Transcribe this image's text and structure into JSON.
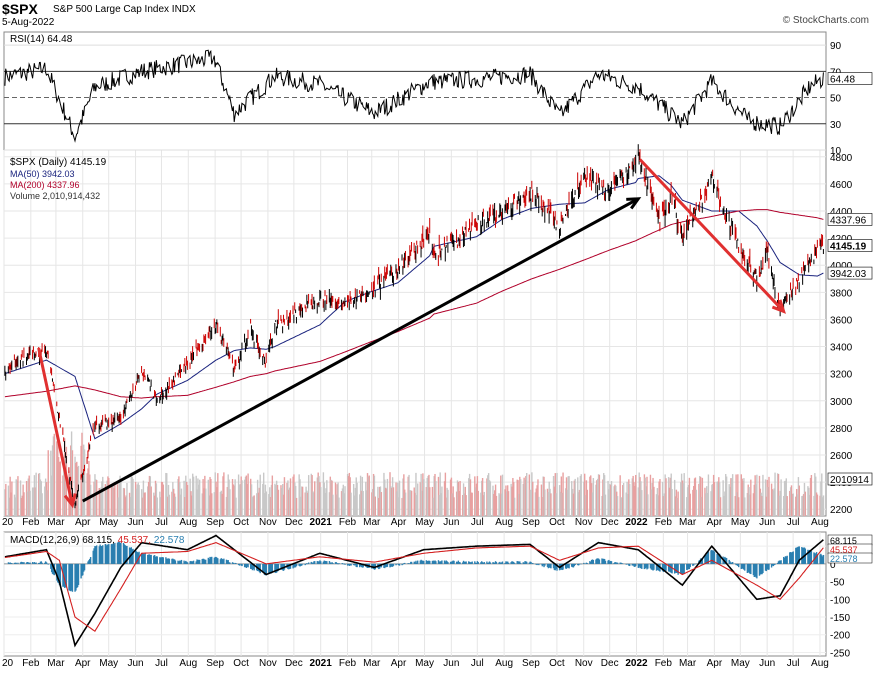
{
  "header": {
    "symbol": "$SPX",
    "description": "S&P 500 Large Cap Index",
    "exchange": "INDX",
    "date": "5-Aug-2022",
    "credit": "© StockCharts.com"
  },
  "colors": {
    "price_up": "#000000",
    "price_down": "#cc0000",
    "ma50": "#1a237e",
    "ma200": "#b0002a",
    "volume_up": "#c8c8c8",
    "volume_down": "#e8a0a0",
    "rsi_line": "#000000",
    "macd_line": "#000000",
    "signal_line": "#d42020",
    "histogram": "#2a7fb0",
    "annotation_red": "#e03030",
    "annotation_black": "#000000"
  },
  "chart_data": [
    {
      "panel": "rsi",
      "type": "line",
      "title": "RSI(14) 64.48",
      "current": 64.48,
      "ylim": [
        10,
        100
      ],
      "ticks": [
        10,
        30,
        50,
        70,
        90
      ],
      "overbought": 70,
      "oversold": 30,
      "x": [
        "2020-01-02",
        "2020-02-19",
        "2020-03-23",
        "2020-04-15",
        "2020-06-08",
        "2020-08-31",
        "2020-09-23",
        "2020-11-09",
        "2020-12-31",
        "2021-03-04",
        "2021-05-07",
        "2021-06-30",
        "2021-08-31",
        "2021-10-04",
        "2021-11-18",
        "2022-01-03",
        "2022-02-23",
        "2022-03-29",
        "2022-05-11",
        "2022-06-16",
        "2022-07-20",
        "2022-08-05"
      ],
      "values": [
        66,
        72,
        20,
        58,
        70,
        80,
        38,
        66,
        60,
        38,
        62,
        64,
        68,
        36,
        68,
        58,
        30,
        62,
        32,
        28,
        58,
        64.48
      ]
    },
    {
      "panel": "price",
      "type": "line",
      "title": "$SPX (Daily) 4145.19",
      "last_price": 4145.19,
      "ylim": [
        2150,
        4850
      ],
      "ticks": [
        2200,
        2400,
        2600,
        2800,
        3000,
        3200,
        3400,
        3600,
        3800,
        4000,
        4200,
        4400,
        4600,
        4800
      ],
      "x_ticks": [
        "20",
        "Feb",
        "Mar",
        "Apr",
        "May",
        "Jun",
        "Jul",
        "Aug",
        "Sep",
        "Oct",
        "Nov",
        "Dec",
        "2021",
        "Feb",
        "Mar",
        "Apr",
        "May",
        "Jun",
        "Jul",
        "Aug",
        "Sep",
        "Oct",
        "Nov",
        "Dec",
        "2022",
        "Feb",
        "Mar",
        "Apr",
        "May",
        "Jun",
        "Jul",
        "Aug"
      ],
      "x": [
        "2020-01-02",
        "2020-02-19",
        "2020-03-23",
        "2020-04-15",
        "2020-05-15",
        "2020-06-08",
        "2020-06-26",
        "2020-07-31",
        "2020-09-02",
        "2020-09-23",
        "2020-10-12",
        "2020-10-30",
        "2020-11-09",
        "2020-12-31",
        "2021-01-29",
        "2021-02-26",
        "2021-03-31",
        "2021-05-07",
        "2021-05-12",
        "2021-06-30",
        "2021-07-30",
        "2021-09-02",
        "2021-10-04",
        "2021-11-02",
        "2021-11-30",
        "2021-12-31",
        "2022-01-03",
        "2022-01-27",
        "2022-02-10",
        "2022-02-23",
        "2022-03-29",
        "2022-04-29",
        "2022-05-20",
        "2022-06-01",
        "2022-06-16",
        "2022-07-08",
        "2022-07-29",
        "2022-08-05"
      ],
      "series": [
        {
          "name": "$SPX",
          "last": 4145.19,
          "values": [
            3240,
            3390,
            2240,
            2800,
            2870,
            3230,
            3010,
            3270,
            3580,
            3240,
            3530,
            3270,
            3550,
            3760,
            3710,
            3810,
            3970,
            4230,
            4060,
            4300,
            4400,
            4540,
            4300,
            4630,
            4560,
            4770,
            4800,
            4330,
            4500,
            4220,
            4630,
            4130,
            3900,
            4100,
            3670,
            3900,
            4130,
            4145.19
          ]
        },
        {
          "name": "MA(50)",
          "last": 3942.03,
          "values": [
            3200,
            3300,
            3180,
            2720,
            2830,
            2940,
            3050,
            3150,
            3300,
            3370,
            3390,
            3380,
            3400,
            3560,
            3730,
            3800,
            3870,
            4070,
            4140,
            4210,
            4340,
            4420,
            4450,
            4460,
            4560,
            4610,
            4640,
            4660,
            4590,
            4480,
            4400,
            4400,
            4290,
            4180,
            4020,
            3930,
            3920,
            3942.03
          ]
        },
        {
          "name": "MA(200)",
          "last": 4337.96,
          "values": [
            3030,
            3070,
            3110,
            3080,
            3030,
            3020,
            3030,
            3040,
            3100,
            3140,
            3180,
            3200,
            3220,
            3290,
            3360,
            3430,
            3510,
            3610,
            3640,
            3720,
            3810,
            3900,
            3970,
            4040,
            4110,
            4180,
            4190,
            4260,
            4300,
            4320,
            4360,
            4400,
            4410,
            4410,
            4390,
            4370,
            4350,
            4337.96
          ]
        }
      ],
      "volume": {
        "name": "Volume",
        "last": 2010914432,
        "last_label": "2010914",
        "title": "Volume 2,010,914,432"
      },
      "annotations": [
        {
          "type": "arrow",
          "color": "red",
          "from": [
            "2020-02-10",
            3390
          ],
          "to": [
            "2020-03-20",
            2230
          ]
        },
        {
          "type": "arrow",
          "color": "black",
          "from": [
            "2020-04-01",
            2260
          ],
          "to": [
            "2022-01-03",
            4490
          ]
        },
        {
          "type": "arrow",
          "color": "red",
          "from": [
            "2022-01-05",
            4780
          ],
          "to": [
            "2022-06-20",
            3660
          ]
        }
      ]
    },
    {
      "panel": "macd",
      "type": "line",
      "title": "MACD(12,26,9) 68.115, 45.537, 22.578",
      "ylim": [
        -260,
        90
      ],
      "ticks": [
        -250,
        -200,
        -150,
        -100,
        -50,
        0,
        50
      ],
      "x": [
        "2020-01-02",
        "2020-02-19",
        "2020-03-05",
        "2020-03-23",
        "2020-04-15",
        "2020-05-15",
        "2020-06-08",
        "2020-07-31",
        "2020-09-02",
        "2020-10-30",
        "2020-12-31",
        "2021-03-04",
        "2021-04-30",
        "2021-06-30",
        "2021-08-31",
        "2021-10-04",
        "2021-11-18",
        "2022-01-03",
        "2022-02-23",
        "2022-03-29",
        "2022-05-20",
        "2022-06-16",
        "2022-07-08",
        "2022-08-05"
      ],
      "series": [
        {
          "name": "MACD",
          "last": 68.115,
          "values": [
            20,
            40,
            -50,
            -230,
            -140,
            -10,
            60,
            40,
            80,
            -30,
            30,
            -10,
            40,
            50,
            55,
            -10,
            60,
            40,
            -60,
            50,
            -100,
            -90,
            10,
            68.115
          ]
        },
        {
          "name": "Signal",
          "last": 45.537,
          "values": [
            18,
            35,
            10,
            -150,
            -190,
            -70,
            30,
            35,
            60,
            0,
            20,
            5,
            30,
            45,
            50,
            10,
            45,
            50,
            -30,
            10,
            -60,
            -100,
            -40,
            45.537
          ]
        },
        {
          "name": "Histogram",
          "last": 22.578,
          "values": [
            2,
            5,
            -60,
            -80,
            50,
            60,
            30,
            5,
            20,
            -30,
            10,
            -15,
            10,
            5,
            5,
            -20,
            15,
            -10,
            -30,
            40,
            -40,
            10,
            50,
            22.578
          ]
        }
      ]
    }
  ]
}
